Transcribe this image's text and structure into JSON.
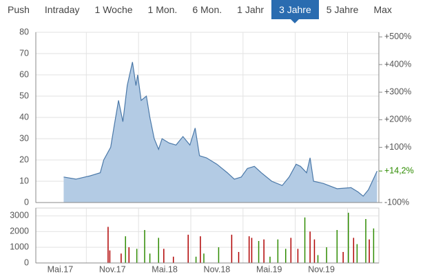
{
  "tabs": {
    "items": [
      "Push",
      "Intraday",
      "1 Woche",
      "1 Mon.",
      "6 Mon.",
      "1 Jahr",
      "3 Jahre",
      "5 Jahre",
      "Max"
    ],
    "selected": 6
  },
  "chart_data": [
    {
      "type": "area",
      "color": "#4a78a8",
      "fill": "#b3cbe4",
      "x": [
        4.9,
        6.3,
        7.9,
        9.1,
        9.5,
        10.3,
        10.7,
        11.2,
        11.7,
        12.2,
        12.8,
        13.2,
        13.4,
        13.8,
        14.4,
        14.8,
        15.3,
        15.8,
        16.2,
        17,
        17.8,
        18.6,
        19.4,
        20,
        20.5,
        21.3,
        22.5,
        23.7,
        24.5,
        25.3,
        26,
        26.8,
        27.6,
        28.8,
        30,
        30.8,
        31.6,
        32.1,
        32.8,
        33.2,
        33.6,
        34.7,
        36.3,
        37.9,
        38.7,
        39.3,
        39.9,
        40.9
      ],
      "values": [
        12,
        11,
        12.5,
        14,
        20,
        26,
        36,
        48,
        38,
        55,
        66,
        55,
        60,
        48,
        50,
        40,
        30,
        25,
        30,
        28,
        27,
        31,
        27,
        35,
        22,
        21,
        18,
        14,
        11,
        12,
        16,
        17,
        14,
        10,
        8,
        12,
        18,
        17,
        14,
        21,
        10,
        9,
        6.5,
        7,
        5,
        3,
        6,
        14.8
      ],
      "xlim": [
        1.7,
        41.1
      ],
      "xticks": [
        {
          "value": 4.5,
          "label": "Mai.17"
        },
        {
          "value": 10.5,
          "label": "Nov.17"
        },
        {
          "value": 16.5,
          "label": "Mai.18"
        },
        {
          "value": 22.5,
          "label": "Nov.18"
        },
        {
          "value": 28.5,
          "label": "Mai.19"
        },
        {
          "value": 34.5,
          "label": "Nov.19"
        }
      ],
      "ylim": [
        0,
        80
      ],
      "yticks": [
        0,
        10,
        20,
        30,
        40,
        50,
        60,
        70,
        80
      ],
      "y2lim": [
        -100,
        517
      ],
      "y2ticks": [
        {
          "value": -100,
          "label": "-100%"
        },
        {
          "value": 100,
          "label": "+100%"
        },
        {
          "value": 200,
          "label": "+200%"
        },
        {
          "value": 300,
          "label": "+300%"
        },
        {
          "value": 400,
          "label": "+400%"
        },
        {
          "value": 500,
          "label": "+500%"
        }
      ],
      "last_change": {
        "value": 14.2,
        "label": "+14,2%",
        "color": "#2e8b00"
      },
      "grid": true
    },
    {
      "type": "bar",
      "x": [
        10.0,
        10.2,
        11.5,
        12,
        12.4,
        13.3,
        14.2,
        14.8,
        15.8,
        16.4,
        17.5,
        19.2,
        20.1,
        20.6,
        21,
        22.7,
        24.2,
        25,
        26.2,
        26.5,
        27.3,
        27.9,
        28.6,
        29.5,
        30.4,
        31,
        31.8,
        32.6,
        33.2,
        33.7,
        34.1,
        35.1,
        36.3,
        37,
        37.6,
        38.2,
        38.6,
        39.6,
        40,
        40.5
      ],
      "values": [
        2300,
        800,
        600,
        1700,
        1000,
        900,
        2100,
        600,
        1600,
        900,
        400,
        1800,
        400,
        1700,
        600,
        1000,
        1800,
        700,
        1700,
        1600,
        1400,
        1500,
        400,
        1500,
        900,
        1600,
        900,
        2900,
        2000,
        1500,
        500,
        1000,
        2100,
        700,
        3200,
        1600,
        1200,
        2800,
        1500,
        2200
      ],
      "colors": [
        "#b00000",
        "#b00000",
        "#b00000",
        "#2e8b00",
        "#b00000",
        "#2e8b00",
        "#2e8b00",
        "#2e8b00",
        "#2e8b00",
        "#b00000",
        "#b00000",
        "#b00000",
        "#2e8b00",
        "#b00000",
        "#2e8b00",
        "#2e8b00",
        "#b00000",
        "#b00000",
        "#b00000",
        "#b00000",
        "#2e8b00",
        "#b00000",
        "#2e8b00",
        "#2e8b00",
        "#2e8b00",
        "#b00000",
        "#b00000",
        "#2e8b00",
        "#b00000",
        "#b00000",
        "#2e8b00",
        "#2e8b00",
        "#2e8b00",
        "#b00000",
        "#2e8b00",
        "#b00000",
        "#2e8b00",
        "#2e8b00",
        "#b00000",
        "#2e8b00"
      ],
      "xlim": [
        1.7,
        41.1
      ],
      "ylim": [
        0,
        3500
      ],
      "yticks": [
        0,
        1000,
        2000,
        3000
      ],
      "grid": true
    }
  ]
}
